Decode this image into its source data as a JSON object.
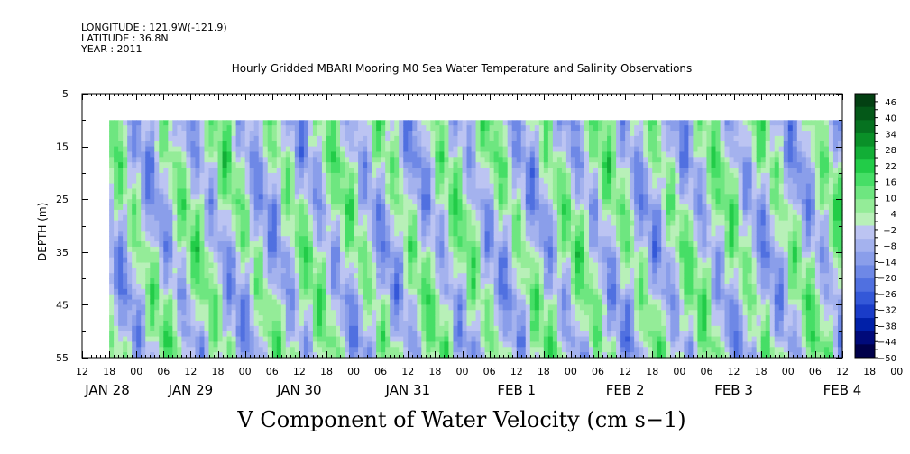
{
  "header": {
    "longitude": "LONGITUDE : 121.9W(-121.9)",
    "latitude": "LATITUDE : 36.8N",
    "year": "YEAR : 2011"
  },
  "chart_data": {
    "type": "heatmap",
    "title": "Hourly Gridded MBARI Mooring M0 Sea Water Temperature and Salinity Observations",
    "subtitle": "V Component of Water Velocity (cm s−1)",
    "ylabel": "DEPTH (m)",
    "ylim": [
      55,
      5
    ],
    "y_ticks": [
      "5",
      "15",
      "25",
      "35",
      "45",
      "55"
    ],
    "x_hour_ticks": [
      "12",
      "18",
      "00",
      "06",
      "12",
      "18",
      "00",
      "06",
      "12",
      "18",
      "00",
      "06",
      "12",
      "18",
      "00",
      "06",
      "12",
      "18",
      "00",
      "06",
      "12",
      "18",
      "00",
      "06",
      "12",
      "18",
      "00",
      "06",
      "12",
      "18",
      "00",
      "06",
      "12"
    ],
    "x_day_labels": [
      "JAN 28",
      "JAN 29",
      "JAN 30",
      "JAN 31",
      "FEB  1",
      "FEB  2",
      "FEB  3",
      "FEB  4"
    ],
    "time_range": [
      "JAN 28 12:00",
      "FEB 4 12:00"
    ],
    "data_time_start": "JAN 28 18:00",
    "data_depth_range": [
      10,
      55
    ],
    "colorbar": {
      "labels": [
        "46",
        "40",
        "34",
        "28",
        "22",
        "16",
        "10",
        "4",
        "−2",
        "−8",
        "−14",
        "−20",
        "−26",
        "−32",
        "−38",
        "−44",
        "−50"
      ],
      "range": [
        -50,
        49
      ],
      "step": 3,
      "colors": [
        "#00004a",
        "#000a7a",
        "#0020a8",
        "#1a3cc8",
        "#3458d8",
        "#5070e0",
        "#6e88e6",
        "#8a9eea",
        "#a4b2ee",
        "#bcc4f2",
        "#b8f0b8",
        "#94ec98",
        "#6ee680",
        "#46de66",
        "#22cc48",
        "#12ae36",
        "#0a9028",
        "#067220",
        "#045818",
        "#034012"
      ]
    }
  }
}
